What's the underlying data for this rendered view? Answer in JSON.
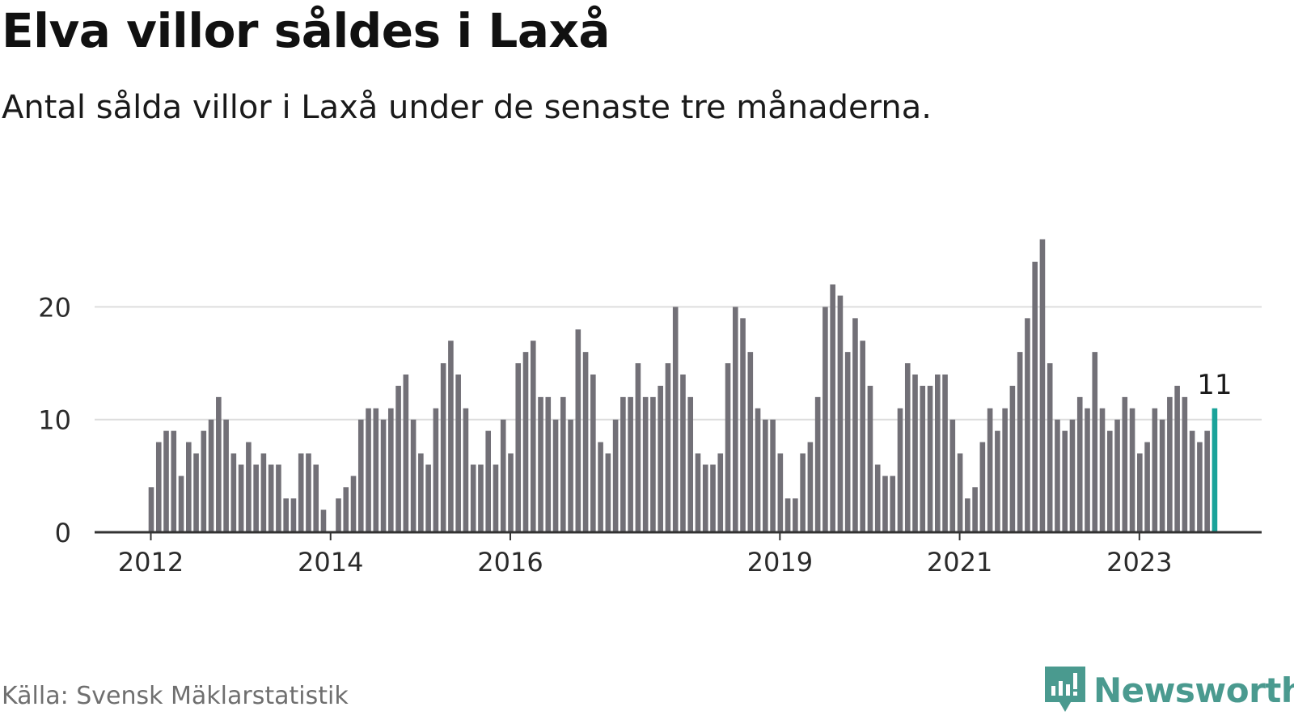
{
  "title": "Elva villor såldes i Laxå",
  "subtitle": "Antal sålda villor i Laxå under de senaste tre månaderna.",
  "source": "Källa: Svensk Mäklarstatistik",
  "brand": "Newsworthy",
  "colors": {
    "bar": "#727077",
    "highlight": "#1aa39a",
    "grid": "#dddddd",
    "axis": "#333333",
    "brand": "#4a9a8f"
  },
  "chart_data": {
    "type": "bar",
    "start": "2012-01",
    "frequency": "monthly",
    "values": [
      4,
      8,
      9,
      9,
      5,
      8,
      7,
      9,
      10,
      12,
      10,
      7,
      6,
      8,
      6,
      7,
      6,
      6,
      3,
      3,
      7,
      7,
      6,
      2,
      0,
      3,
      4,
      5,
      10,
      11,
      11,
      10,
      11,
      13,
      14,
      10,
      7,
      6,
      11,
      15,
      17,
      14,
      11,
      6,
      6,
      9,
      6,
      10,
      7,
      15,
      16,
      17,
      12,
      12,
      10,
      12,
      10,
      18,
      16,
      14,
      8,
      7,
      10,
      12,
      12,
      15,
      12,
      12,
      13,
      15,
      20,
      14,
      12,
      7,
      6,
      6,
      7,
      15,
      20,
      19,
      16,
      11,
      10,
      10,
      7,
      3,
      3,
      7,
      8,
      12,
      20,
      22,
      21,
      16,
      19,
      17,
      13,
      6,
      5,
      5,
      11,
      15,
      14,
      13,
      13,
      14,
      14,
      10,
      7,
      3,
      4,
      8,
      11,
      9,
      11,
      13,
      16,
      19,
      24,
      26,
      15,
      10,
      9,
      10,
      12,
      11,
      16,
      11,
      9,
      10,
      12,
      11,
      7,
      8,
      11,
      10,
      12,
      13,
      12,
      9,
      8,
      9,
      11
    ],
    "highlight_last": true,
    "highlight_label": "11",
    "x_ticks": [
      {
        "label": "2012",
        "index": 0
      },
      {
        "label": "2014",
        "index": 24
      },
      {
        "label": "2016",
        "index": 48
      },
      {
        "label": "2019",
        "index": 84
      },
      {
        "label": "2021",
        "index": 108
      },
      {
        "label": "2023",
        "index": 132
      }
    ],
    "y_ticks": [
      {
        "label": "0",
        "value": 0
      },
      {
        "label": "10",
        "value": 10
      },
      {
        "label": "20",
        "value": 20
      }
    ],
    "ylim": [
      0,
      28
    ],
    "grid": true
  }
}
